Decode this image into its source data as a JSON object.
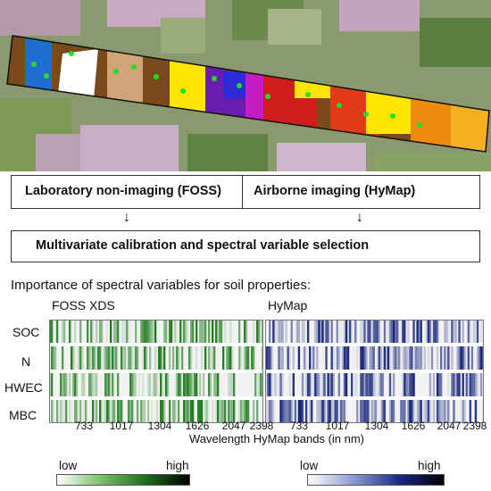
{
  "boxes": {
    "lab_label": "Laboratory non-imaging (FOSS)",
    "air_label": "Airborne imaging (HyMap)",
    "calib_label": "Multivariate calibration and spectral variable selection"
  },
  "importance": {
    "heading": "Importance of spectral variables for soil properties:",
    "panels": [
      {
        "title": "FOSS XDS",
        "color": "#1a7a1a"
      },
      {
        "title": "HyMap",
        "color": "#14237a"
      }
    ],
    "rows": [
      "SOC",
      "N",
      "HWEC",
      "MBC"
    ],
    "ticks": [
      "733",
      "1017",
      "1304",
      "1626",
      "2047",
      "2398"
    ],
    "xlabel": "Wavelength HyMap bands (in nm)"
  },
  "legend": {
    "low_label": "low",
    "high_label": "high",
    "green_scale": [
      "#ffffff",
      "#7bbf6a",
      "#1e6f1e",
      "#000000"
    ],
    "blue_scale": [
      "#ffffff",
      "#8e9bd0",
      "#1b2a8a",
      "#000000"
    ]
  },
  "icons": {
    "arrow_left": "down-arrow-icon",
    "arrow_right": "down-arrow-icon"
  }
}
